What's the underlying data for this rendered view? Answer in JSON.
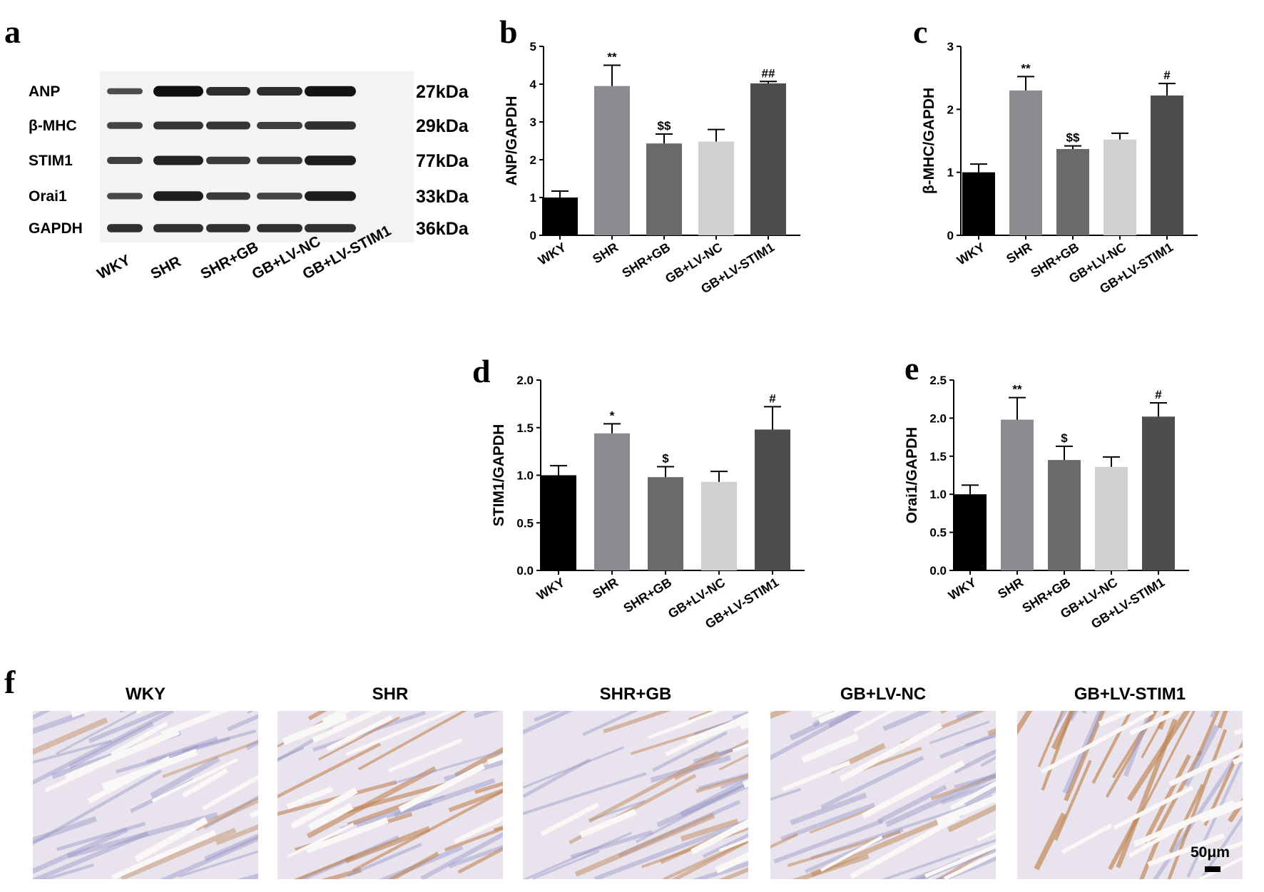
{
  "panel_labels": {
    "a": "a",
    "b": "b",
    "c": "c",
    "d": "d",
    "e": "e",
    "f": "f"
  },
  "western_blot": {
    "rows": [
      {
        "protein": "ANP",
        "kda": "27kDa",
        "intensity": [
          0.35,
          1.0,
          0.7,
          0.7,
          0.95
        ]
      },
      {
        "protein": "β-MHC",
        "kda": "29kDa",
        "intensity": [
          0.45,
          0.6,
          0.6,
          0.5,
          0.65
        ]
      },
      {
        "protein": "STIM1",
        "kda": "77kDa",
        "intensity": [
          0.5,
          0.8,
          0.55,
          0.55,
          0.85
        ]
      },
      {
        "protein": "Orai1",
        "kda": "33kDa",
        "intensity": [
          0.4,
          0.85,
          0.55,
          0.45,
          0.85
        ]
      },
      {
        "protein": "GAPDH",
        "kda": "36kDa",
        "intensity": [
          0.65,
          0.65,
          0.65,
          0.65,
          0.65
        ]
      }
    ],
    "lanes": [
      "WKY",
      "SHR",
      "SHR+GB",
      "GB+LV-NC",
      "GB+LV-STIM1"
    ]
  },
  "chart_data": [
    {
      "id": "b",
      "type": "bar",
      "categories": [
        "WKY",
        "SHR",
        "SHR+GB",
        "GB+LV-NC",
        "GB+LV-STIM1"
      ],
      "values": [
        1.0,
        3.95,
        2.43,
        2.48,
        4.02
      ],
      "errors": [
        0.17,
        0.55,
        0.25,
        0.32,
        0.05
      ],
      "annotations": [
        "",
        "**",
        "$$",
        "",
        "##"
      ],
      "ylabel": "ANP/GAPDH",
      "ylim": [
        0,
        5
      ],
      "yticks": [
        0,
        1,
        2,
        3,
        4,
        5
      ],
      "ytick_labels": [
        "0",
        "1",
        "2",
        "3",
        "4",
        "5"
      ],
      "colors": [
        "#000000",
        "#8c8c90",
        "#6a6a6a",
        "#d0d0d0",
        "#4d4d4d"
      ]
    },
    {
      "id": "c",
      "type": "bar",
      "categories": [
        "WKY",
        "SHR",
        "SHR+GB",
        "GB+LV-NC",
        "GB+LV-STIM1"
      ],
      "values": [
        1.0,
        2.3,
        1.37,
        1.52,
        2.22
      ],
      "errors": [
        0.13,
        0.22,
        0.05,
        0.1,
        0.19
      ],
      "annotations": [
        "",
        "**",
        "$$",
        "",
        "#"
      ],
      "ylabel": "β-MHC/GAPDH",
      "ylim": [
        0,
        3
      ],
      "yticks": [
        0,
        1,
        2,
        3
      ],
      "ytick_labels": [
        "0",
        "1",
        "2",
        "3"
      ],
      "colors": [
        "#000000",
        "#8c8c90",
        "#6a6a6a",
        "#d0d0d0",
        "#4d4d4d"
      ]
    },
    {
      "id": "d",
      "type": "bar",
      "categories": [
        "WKY",
        "SHR",
        "SHR+GB",
        "GB+LV-NC",
        "GB+LV-STIM1"
      ],
      "values": [
        1.0,
        1.44,
        0.98,
        0.93,
        1.48
      ],
      "errors": [
        0.1,
        0.1,
        0.11,
        0.11,
        0.24
      ],
      "annotations": [
        "",
        "*",
        "$",
        "",
        "#"
      ],
      "ylabel": "STIM1/GAPDH",
      "ylim": [
        0,
        2
      ],
      "yticks": [
        0,
        0.5,
        1,
        1.5,
        2
      ],
      "ytick_labels": [
        "0.0",
        "0.5",
        "1.0",
        "1.5",
        "2.0"
      ],
      "colors": [
        "#000000",
        "#8c8c90",
        "#6a6a6a",
        "#d0d0d0",
        "#4d4d4d"
      ]
    },
    {
      "id": "e",
      "type": "bar",
      "categories": [
        "WKY",
        "SHR",
        "SHR+GB",
        "GB+LV-NC",
        "GB+LV-STIM1"
      ],
      "values": [
        1.0,
        1.98,
        1.45,
        1.36,
        2.02
      ],
      "errors": [
        0.12,
        0.29,
        0.18,
        0.13,
        0.18
      ],
      "annotations": [
        "",
        "**",
        "$",
        "",
        "#"
      ],
      "ylabel": "Orai1/GAPDH",
      "ylim": [
        0,
        2.5
      ],
      "yticks": [
        0,
        0.5,
        1,
        1.5,
        2,
        2.5
      ],
      "ytick_labels": [
        "0.0",
        "0.5",
        "1.0",
        "1.5",
        "2.0",
        "2.5"
      ],
      "colors": [
        "#000000",
        "#8c8c90",
        "#6a6a6a",
        "#d0d0d0",
        "#4d4d4d"
      ]
    }
  ],
  "ihc": {
    "titles": [
      "WKY",
      "SHR",
      "SHR+GB",
      "GB+LV-NC",
      "GB+LV-STIM1"
    ],
    "stain_level": [
      0.15,
      0.6,
      0.3,
      0.35,
      0.75
    ],
    "scale_bar": "50μm"
  }
}
